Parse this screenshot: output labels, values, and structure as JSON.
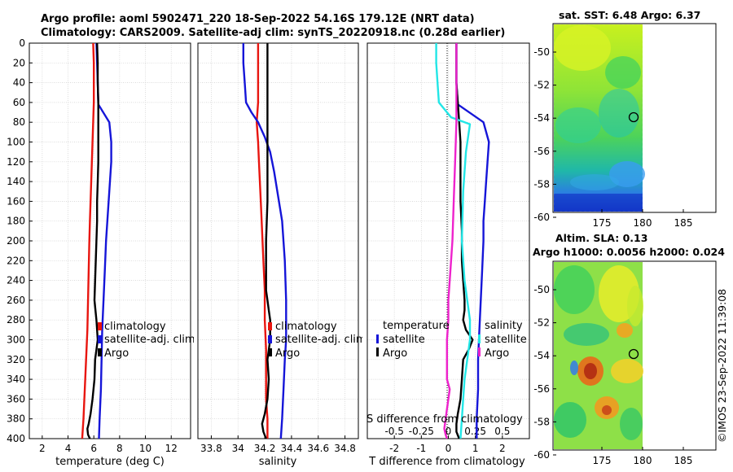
{
  "header": {
    "title_line1": "Argo profile: aoml 5902471_220 18-Sep-2022 54.16S 179.12E (NRT data)",
    "title_line2": "Climatology: CARS2009. Satellite-adj clim: synTS_20220918.nc (0.28d earlier)"
  },
  "colors": {
    "climatology": "#e8150f",
    "satellite": "#1515d8",
    "argo": "#000000",
    "satellite_salinity": "#22e6e6",
    "argo_salinity": "#ee22cc",
    "grid": "#cfcfcf"
  },
  "chart_data": [
    {
      "id": "temperature",
      "type": "line",
      "xlabel": "temperature (deg C)",
      "ylabel": "",
      "xlim": [
        1,
        13.5
      ],
      "ylim": [
        400,
        0
      ],
      "xticks": [
        2,
        4,
        6,
        8,
        10,
        12
      ],
      "xtick_labels": [
        "2",
        "4",
        "6",
        "8",
        "10",
        "12"
      ],
      "yticks": [
        0,
        20,
        40,
        60,
        80,
        100,
        120,
        140,
        160,
        180,
        200,
        220,
        240,
        260,
        280,
        300,
        320,
        340,
        360,
        380,
        400
      ],
      "grid": true,
      "legend": [
        "climatology",
        "satellite-adj. clim",
        "Argo"
      ],
      "series": [
        {
          "name": "climatology",
          "color": "#e8150f",
          "x": [
            5.95,
            6.0,
            6.0,
            6.0,
            5.95,
            5.9,
            5.85,
            5.8,
            5.75,
            5.7,
            5.65,
            5.6,
            5.55,
            5.5,
            5.4,
            5.3,
            5.2,
            5.1
          ],
          "y": [
            0,
            20,
            40,
            60,
            80,
            100,
            120,
            140,
            160,
            180,
            200,
            230,
            260,
            290,
            320,
            350,
            380,
            400
          ]
        },
        {
          "name": "satellite-adj. clim",
          "color": "#1515d8",
          "x": [
            6.2,
            6.25,
            6.3,
            6.35,
            7.2,
            7.35,
            7.35,
            7.25,
            7.15,
            7.05,
            6.95,
            6.85,
            6.75,
            6.65,
            6.6,
            6.55,
            6.45,
            6.4
          ],
          "y": [
            0,
            20,
            40,
            62,
            80,
            100,
            120,
            140,
            160,
            180,
            200,
            230,
            260,
            290,
            320,
            350,
            380,
            400
          ]
        },
        {
          "name": "Argo",
          "color": "#000000",
          "x": [
            6.25,
            6.3,
            6.3,
            6.35,
            6.35,
            6.35,
            6.35,
            6.3,
            6.25,
            6.25,
            6.2,
            6.15,
            6.1,
            6.05,
            6.2,
            6.3,
            6.2,
            6.1,
            6.05,
            5.9,
            5.75,
            5.6,
            5.5,
            5.55,
            5.7
          ],
          "y": [
            0,
            20,
            40,
            60,
            80,
            100,
            120,
            140,
            160,
            180,
            200,
            220,
            240,
            260,
            280,
            300,
            310,
            320,
            340,
            360,
            375,
            385,
            390,
            396,
            400
          ]
        }
      ]
    },
    {
      "id": "salinity",
      "type": "line",
      "xlabel": "salinity",
      "ylabel": "",
      "xlim": [
        33.7,
        34.9
      ],
      "ylim": [
        400,
        0
      ],
      "xticks": [
        33.8,
        34.0,
        34.2,
        34.4,
        34.6,
        34.8
      ],
      "xtick_labels": [
        "33.8",
        "34",
        "34.2",
        "34.4",
        "34.6",
        "34.8"
      ],
      "grid": true,
      "legend": [
        "climatology",
        "satellite-adj. clim",
        "Argo"
      ],
      "series": [
        {
          "name": "climatology",
          "color": "#e8150f",
          "x": [
            34.15,
            34.15,
            34.15,
            34.15,
            34.14,
            34.15,
            34.16,
            34.17,
            34.18,
            34.19,
            34.2,
            34.2,
            34.21,
            34.21,
            34.21,
            34.22,
            34.22
          ],
          "y": [
            0,
            20,
            40,
            60,
            80,
            100,
            130,
            160,
            190,
            220,
            250,
            280,
            310,
            340,
            360,
            380,
            400
          ]
        },
        {
          "name": "satellite-adj. clim",
          "color": "#1515d8",
          "x": [
            34.04,
            34.04,
            34.05,
            34.06,
            34.1,
            34.15,
            34.2,
            34.24,
            34.27,
            34.3,
            34.33,
            34.35,
            34.36,
            34.36,
            34.35,
            34.34,
            34.33,
            34.32
          ],
          "y": [
            0,
            20,
            40,
            60,
            70,
            80,
            95,
            110,
            130,
            155,
            180,
            220,
            260,
            300,
            320,
            350,
            380,
            400
          ]
        },
        {
          "name": "Argo",
          "color": "#000000",
          "x": [
            34.22,
            34.22,
            34.22,
            34.22,
            34.22,
            34.21,
            34.21,
            34.21,
            34.21,
            34.22,
            34.23,
            34.24,
            34.24,
            34.22,
            34.23,
            34.22,
            34.2,
            34.18,
            34.19,
            34.21
          ],
          "y": [
            0,
            40,
            80,
            120,
            160,
            200,
            220,
            240,
            250,
            260,
            270,
            280,
            300,
            320,
            340,
            360,
            375,
            385,
            393,
            400
          ]
        }
      ]
    },
    {
      "id": "difference",
      "type": "line",
      "xlabel": "T difference from climatology",
      "top_xlabel": "S difference from climatology",
      "ylabel": "",
      "xlim": [
        -3,
        3
      ],
      "ylim": [
        400,
        0
      ],
      "xticks": [
        -2,
        -1,
        0,
        1,
        2
      ],
      "xtick_labels": [
        "-2",
        "-1",
        "0",
        "1",
        "2"
      ],
      "top_tick_labels": [
        "-0.5",
        "-0.25",
        "0",
        "0.25",
        "0.5"
      ],
      "top_tick_values": [
        -0.5,
        -0.25,
        0,
        0.25,
        0.5
      ],
      "s_scale": 4,
      "grid": true,
      "legend_temperature_title": "temperature",
      "legend_salinity_title": "salinity",
      "legend_temperature": [
        "satellite",
        "Argo"
      ],
      "legend_salinity": [
        "satellite",
        "Argo"
      ],
      "series": [
        {
          "name": "T satellite",
          "color": "#1515d8",
          "x": [
            0.3,
            0.3,
            0.3,
            0.35,
            1.3,
            1.5,
            1.45,
            1.4,
            1.35,
            1.3,
            1.3,
            1.25,
            1.2,
            1.15,
            1.1,
            1.1,
            1.05,
            1.05
          ],
          "y": [
            0,
            20,
            40,
            62,
            80,
            100,
            120,
            140,
            160,
            180,
            200,
            230,
            260,
            290,
            320,
            350,
            380,
            400
          ]
        },
        {
          "name": "T Argo",
          "color": "#000000",
          "x": [
            0.3,
            0.3,
            0.3,
            0.35,
            0.4,
            0.45,
            0.45,
            0.45,
            0.5,
            0.5,
            0.55,
            0.6,
            0.6,
            0.55,
            0.65,
            0.9,
            0.75,
            0.55,
            0.5,
            0.45,
            0.35,
            0.3,
            0.3,
            0.4
          ],
          "y": [
            0,
            20,
            40,
            60,
            80,
            100,
            130,
            160,
            190,
            220,
            240,
            260,
            270,
            280,
            290,
            300,
            310,
            320,
            340,
            360,
            375,
            385,
            393,
            400
          ]
        },
        {
          "name": "S satellite",
          "color": "#22e6e6",
          "x": [
            -0.45,
            -0.45,
            -0.4,
            -0.35,
            0.1,
            0.8,
            0.65,
            0.55,
            0.5,
            0.6,
            0.7,
            0.8,
            0.8,
            0.7,
            0.6,
            0.55,
            0.5,
            0.45
          ],
          "y": [
            0,
            20,
            40,
            60,
            75,
            82,
            110,
            150,
            200,
            240,
            260,
            280,
            300,
            320,
            340,
            360,
            380,
            400
          ]
        },
        {
          "name": "S Argo",
          "color": "#ee22cc",
          "x": [
            0.3,
            0.3,
            0.3,
            0.25,
            0.2,
            0.15,
            0.05,
            0.0,
            0.0,
            -0.05,
            -0.05,
            -0.05,
            0.05,
            0.0,
            -0.05,
            -0.1,
            -0.15,
            -0.1,
            -0.05
          ],
          "y": [
            0,
            40,
            80,
            120,
            160,
            200,
            240,
            260,
            280,
            300,
            320,
            340,
            350,
            360,
            370,
            380,
            390,
            396,
            400
          ]
        }
      ]
    }
  ],
  "maps": {
    "sst": {
      "title": "sat. SST: 6.48 Argo: 6.37",
      "xticks": [
        "175",
        "180",
        "185"
      ],
      "yticks": [
        "-50",
        "-52",
        "-54",
        "-56",
        "-58",
        "-60"
      ]
    },
    "sla": {
      "title_line1": "Altim. SLA: 0.13",
      "title_line2": "Argo h1000: 0.0056 h2000: 0.024",
      "xticks": [
        "175",
        "180",
        "185"
      ],
      "yticks": [
        "-50",
        "-52",
        "-54",
        "-56",
        "-58",
        "-60"
      ]
    }
  },
  "footer": {
    "stamp": "©IMOS 23-Sep-2022 11:39:08"
  }
}
